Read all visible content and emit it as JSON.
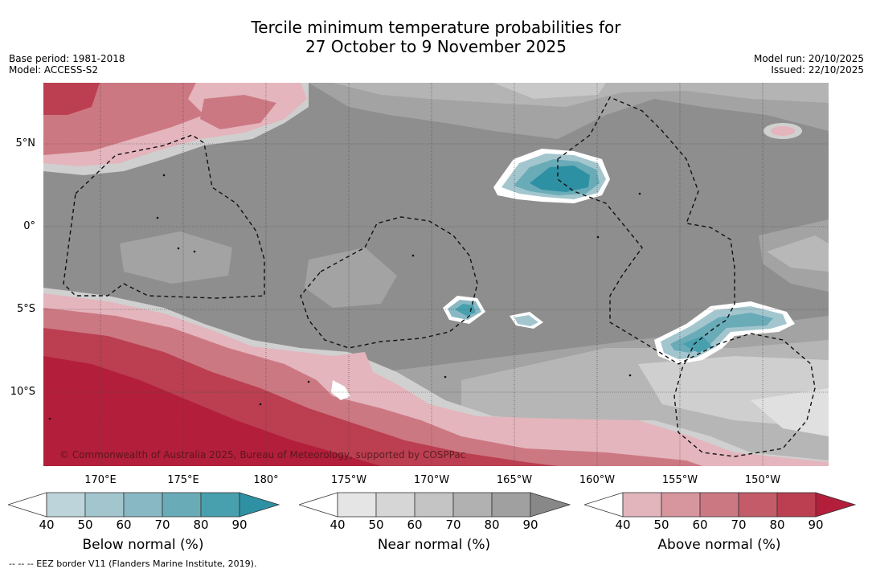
{
  "title": {
    "line1": "Tercile minimum temperature probabilities for",
    "line2": "27 October to 9 November 2025"
  },
  "meta_left": {
    "base_period": "Base period: 1981-2018",
    "model": "Model: ACCESS-S2"
  },
  "meta_right": {
    "model_run": "Model run: 20/10/2025",
    "issued": "Issued: 22/10/2025"
  },
  "map": {
    "lat_labels": [
      "5°N",
      "0°",
      "5°S",
      "10°S"
    ],
    "lon_labels": [
      "170°E",
      "175°E",
      "180°",
      "175°W",
      "170°W",
      "165°W",
      "160°W",
      "155°W",
      "150°W"
    ],
    "copyright": "© Commonwealth of Australia 2025, Bureau of Meteorology, supported by COSPPac"
  },
  "colorbars": [
    {
      "label": "Below normal (%)",
      "ticks": [
        "40",
        "50",
        "60",
        "70",
        "80",
        "90"
      ],
      "colors": [
        "#ffffff",
        "#bdd4da",
        "#a3c6ce",
        "#88b8c3",
        "#6aabb8",
        "#48a0ae",
        "#2e90a3"
      ]
    },
    {
      "label": "Near normal (%)",
      "ticks": [
        "40",
        "50",
        "60",
        "70",
        "80",
        "90"
      ],
      "colors": [
        "#ffffff",
        "#e5e5e5",
        "#d6d6d6",
        "#c4c4c4",
        "#b1b1b1",
        "#a0a0a0",
        "#888888"
      ]
    },
    {
      "label": "Above normal (%)",
      "ticks": [
        "40",
        "50",
        "60",
        "70",
        "80",
        "90"
      ],
      "colors": [
        "#ffffff",
        "#e2b5bd",
        "#d7959e",
        "#cc7883",
        "#c35c68",
        "#bb3f50",
        "#b31f3a"
      ]
    }
  ],
  "footnote": "--  --  -- EEZ border V11 (Flanders Marine Institute, 2019)."
}
